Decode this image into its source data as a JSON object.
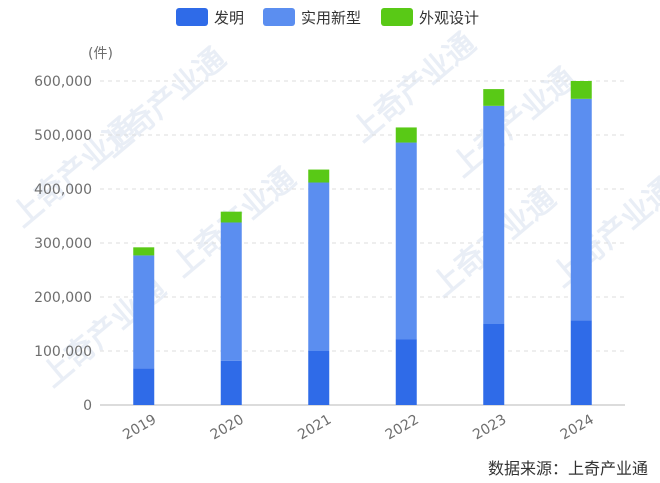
{
  "chart_data": {
    "type": "bar",
    "stacked": true,
    "categories": [
      "2019",
      "2020",
      "2021",
      "2022",
      "2023",
      "2024"
    ],
    "series": [
      {
        "name": "发明",
        "color": "#2f6be8",
        "values": [
          68000,
          82000,
          100000,
          122000,
          150000,
          157000
        ]
      },
      {
        "name": "实用新型",
        "color": "#5b8ef0",
        "values": [
          209000,
          256000,
          312000,
          364000,
          404000,
          410000
        ]
      },
      {
        "name": "外观设计",
        "color": "#59c916",
        "values": [
          15000,
          20000,
          24000,
          28000,
          31000,
          33000
        ]
      }
    ],
    "ylabel": "(件)",
    "ylim": [
      0,
      600000
    ],
    "yticks": [
      "0",
      "100,000",
      "200,000",
      "300,000",
      "400,000",
      "500,000",
      "600,000"
    ],
    "grid": true,
    "legend_position": "top-center"
  },
  "source_text": "数据来源：上奇产业通",
  "watermark_text": "上奇产业通"
}
